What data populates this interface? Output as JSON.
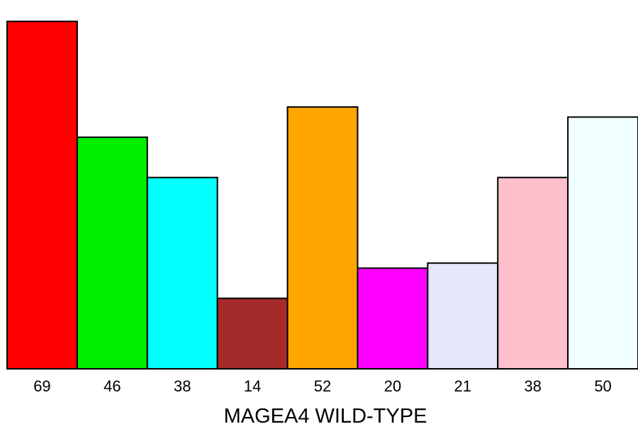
{
  "chart_data": {
    "type": "bar",
    "title": "",
    "xlabel": "MAGEA4 WILD-TYPE",
    "ylabel": "",
    "categories": [
      "69",
      "46",
      "38",
      "14",
      "52",
      "20",
      "21",
      "38",
      "50"
    ],
    "values": [
      69,
      46,
      38,
      14,
      52,
      20,
      21,
      38,
      50
    ],
    "colors": [
      "#ff0000",
      "#00ee00",
      "#00ffff",
      "#a52a2a",
      "#ffa500",
      "#ff00ff",
      "#e6e6fa",
      "#ffc0cb",
      "#f0ffff"
    ],
    "ylim": [
      0,
      71
    ],
    "grid": false,
    "legend": "none"
  }
}
